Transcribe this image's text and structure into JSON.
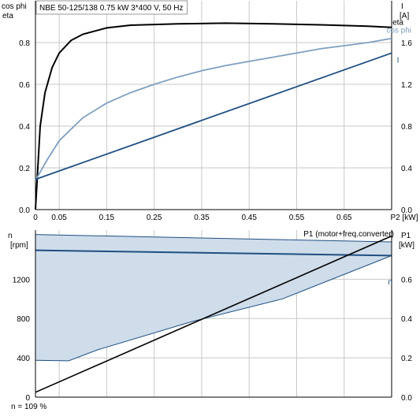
{
  "chart_data": [
    {
      "type": "line",
      "title": "NBE 50-125/138   0.75 kW   3*400 V, 50 Hz",
      "xlabel": "P2 [kW]",
      "xlim": [
        0,
        0.75
      ],
      "x_ticks": [
        "0",
        "0.05",
        "0.15",
        "0.25",
        "0.35",
        "0.45",
        "0.55",
        "0.65"
      ],
      "x_tick_values": [
        0,
        0.05,
        0.15,
        0.25,
        0.35,
        0.45,
        0.55,
        0.65
      ],
      "left_axis_label_1": "cos phi",
      "left_axis_label_2": "eta",
      "left_ylim": [
        0,
        1
      ],
      "left_ticks": [
        "0.0",
        "0.2",
        "0.4",
        "0.6",
        "0.8"
      ],
      "right_axis_label_1": "I",
      "right_axis_label_2": "[A]",
      "right_ylim": [
        0,
        2
      ],
      "right_ticks": [
        "0.0",
        "0.4",
        "0.8",
        "1.2",
        "1.6"
      ],
      "series": [
        {
          "name": "eta",
          "axis": "left",
          "color": "#000000",
          "x": [
            0,
            0.01,
            0.02,
            0.035,
            0.05,
            0.075,
            0.1,
            0.15,
            0.2,
            0.3,
            0.4,
            0.5,
            0.6,
            0.7,
            0.75
          ],
          "y": [
            0,
            0.4,
            0.56,
            0.68,
            0.75,
            0.81,
            0.84,
            0.87,
            0.883,
            0.89,
            0.893,
            0.89,
            0.885,
            0.878,
            0.873
          ]
        },
        {
          "name": "cos phi",
          "axis": "left",
          "color": "#7f9fc0",
          "x": [
            0,
            0.025,
            0.05,
            0.1,
            0.15,
            0.2,
            0.25,
            0.3,
            0.35,
            0.4,
            0.45,
            0.5,
            0.55,
            0.6,
            0.65,
            0.7,
            0.75
          ],
          "y": [
            0.14,
            0.24,
            0.33,
            0.44,
            0.51,
            0.56,
            0.6,
            0.635,
            0.665,
            0.69,
            0.71,
            0.73,
            0.75,
            0.77,
            0.785,
            0.8,
            0.82
          ]
        },
        {
          "name": "I",
          "axis": "right",
          "color": "#1f4f82",
          "x": [
            0,
            0.75
          ],
          "y": [
            0.29,
            1.5
          ]
        }
      ]
    },
    {
      "type": "area",
      "xlim": [
        0,
        0.75
      ],
      "left_axis_label_1": "n",
      "left_axis_label_2": "[rpm]",
      "left_ylim": [
        0,
        1700
      ],
      "left_ticks": [
        "0",
        "400",
        "800",
        "1200"
      ],
      "left_tick_values": [
        0,
        400,
        800,
        1200
      ],
      "right_axis_label_1": "P1",
      "right_axis_label_2": "[kW]",
      "right_ylim": [
        0,
        0.85
      ],
      "right_ticks": [
        "0.0",
        "0.2",
        "0.4",
        "0.6"
      ],
      "right_tick_values": [
        0,
        0.2,
        0.4,
        0.6
      ],
      "footer": "n = 109 %",
      "series": [
        {
          "name": "n",
          "kind": "band-top",
          "axis": "left",
          "color": "#1f4f82",
          "x": [
            0,
            0.75
          ],
          "y": [
            1655,
            1580
          ]
        },
        {
          "name": "",
          "kind": "band-bottom",
          "axis": "left",
          "color": "#1f4f82",
          "x": [
            0,
            0.07,
            0.13,
            0.33,
            0.52,
            0.75
          ],
          "y": [
            375,
            370,
            480,
            770,
            1000,
            1440
          ]
        },
        {
          "name": "",
          "kind": "nominal",
          "axis": "left",
          "color": "#1f4f82",
          "x": [
            0,
            0.75
          ],
          "y": [
            1495,
            1440
          ]
        },
        {
          "name": "P1 (motor+freq.converter)",
          "kind": "line",
          "axis": "right",
          "color": "#000000",
          "x": [
            0,
            0.75
          ],
          "y": [
            0.025,
            0.82
          ]
        }
      ]
    }
  ]
}
